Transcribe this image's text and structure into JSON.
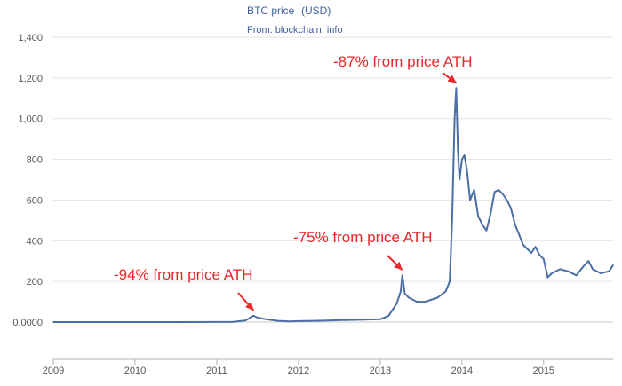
{
  "chart_data": {
    "type": "line",
    "title": "BTC price",
    "title_unit": "(USD)",
    "subtitle": "From: blockchain. info",
    "xlabel": "",
    "ylabel": "",
    "x_tick_labels": [
      "2009",
      "2010",
      "2011",
      "2012",
      "2013",
      "2014",
      "2015"
    ],
    "y_tick_labels": [
      "0.0000",
      "200",
      "400",
      "600",
      "800",
      "1,000",
      "1,200",
      "1,400"
    ],
    "xlim": [
      2009.0,
      2015.85
    ],
    "ylim": [
      0,
      1400
    ],
    "grid": "horizontal",
    "line_color": "#4a6fa5",
    "annotation_color": "#e8262b",
    "series": [
      {
        "x": [
          2009.0,
          2010.0,
          2010.5,
          2011.0,
          2011.2,
          2011.35,
          2011.45,
          2011.5,
          2011.6,
          2011.75,
          2011.9,
          2012.0,
          2012.2,
          2012.5,
          2012.8,
          2013.0,
          2013.1,
          2013.2,
          2013.25,
          2013.27,
          2013.3,
          2013.35,
          2013.45,
          2013.55,
          2013.7,
          2013.8,
          2013.85,
          2013.88,
          2013.91,
          2013.93,
          2013.95,
          2013.97,
          2014.0,
          2014.03,
          2014.06,
          2014.1,
          2014.15,
          2014.2,
          2014.25,
          2014.3,
          2014.35,
          2014.4,
          2014.45,
          2014.5,
          2014.55,
          2014.6,
          2014.65,
          2014.7,
          2014.75,
          2014.8,
          2014.85,
          2014.9,
          2014.95,
          2015.0,
          2015.05,
          2015.1,
          2015.2,
          2015.3,
          2015.4,
          2015.5,
          2015.55,
          2015.6,
          2015.7,
          2015.8,
          2015.85
        ],
        "y": [
          0,
          0,
          0.1,
          0.3,
          1,
          8,
          31,
          22,
          14,
          6,
          3,
          5,
          6,
          9,
          12,
          14,
          30,
          90,
          150,
          230,
          140,
          120,
          100,
          100,
          120,
          150,
          200,
          500,
          1000,
          1150,
          850,
          700,
          800,
          820,
          750,
          600,
          650,
          520,
          480,
          450,
          530,
          640,
          650,
          630,
          600,
          560,
          480,
          430,
          380,
          360,
          340,
          370,
          330,
          310,
          220,
          240,
          260,
          250,
          230,
          280,
          300,
          260,
          240,
          250,
          280
        ]
      }
    ],
    "annotations": [
      {
        "text": "-94% from price ATH",
        "x": 2011.45,
        "y": 31
      },
      {
        "text": "-75% from price ATH",
        "x": 2013.27,
        "y": 230
      },
      {
        "text": "-87% from price ATH",
        "x": 2013.93,
        "y": 1150
      }
    ]
  }
}
